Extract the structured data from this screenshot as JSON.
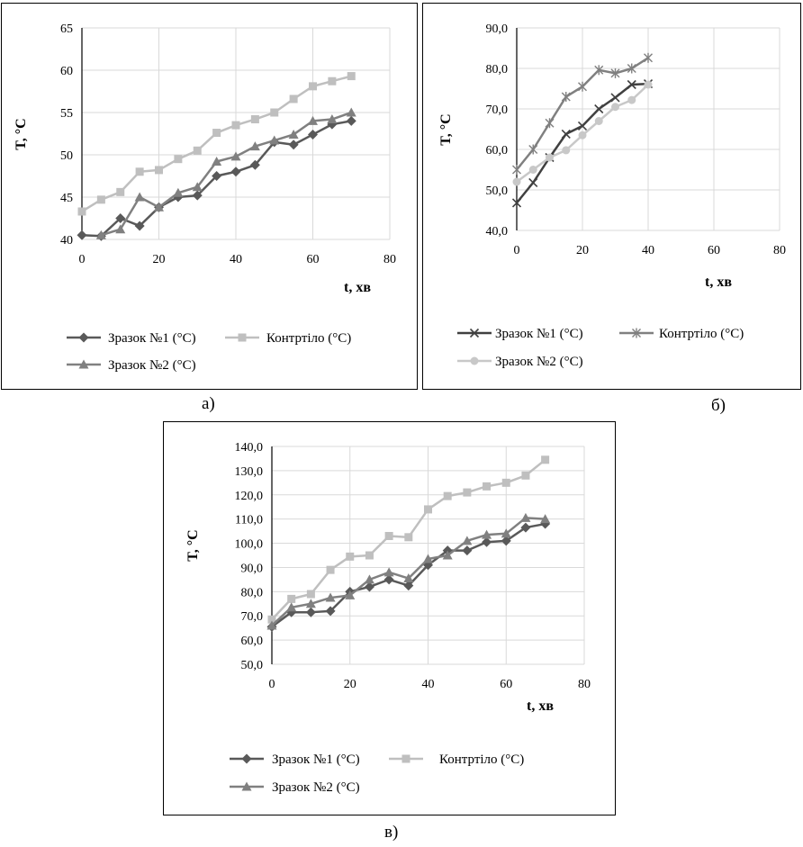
{
  "chart_data": [
    {
      "id": "a",
      "type": "line",
      "caption": "а)",
      "xlabel": "t, хв",
      "ylabel": "T, °C",
      "xlim": [
        0,
        80
      ],
      "ylim": [
        40,
        65
      ],
      "xticks": [
        "0",
        "20",
        "40",
        "60",
        "80"
      ],
      "yticks": [
        "40",
        "45",
        "50",
        "55",
        "60",
        "65"
      ],
      "grid": true,
      "legend": "bottom",
      "series": [
        {
          "name": "Зразок №1 (°C)",
          "color": "#595959",
          "marker": "diamond",
          "x": [
            0,
            5,
            10,
            15,
            20,
            25,
            30,
            35,
            40,
            45,
            50,
            55,
            60,
            65,
            70
          ],
          "y": [
            40.5,
            40.4,
            42.5,
            41.6,
            43.8,
            45.0,
            45.2,
            47.5,
            48.0,
            48.8,
            51.5,
            51.2,
            52.4,
            53.6,
            54.0
          ]
        },
        {
          "name": "Контртіло (°C)",
          "color": "#bfbfbf",
          "marker": "square",
          "x": [
            0,
            5,
            10,
            15,
            20,
            25,
            30,
            35,
            40,
            45,
            50,
            55,
            60,
            65,
            70
          ],
          "y": [
            43.3,
            44.7,
            45.6,
            48.0,
            48.2,
            49.5,
            50.5,
            52.6,
            53.5,
            54.2,
            55.0,
            56.6,
            58.1,
            58.7,
            59.3
          ]
        },
        {
          "name": "Зразок №2 (°C)",
          "color": "#808080",
          "marker": "triangle",
          "x": [
            5,
            10,
            15,
            20,
            25,
            30,
            35,
            40,
            45,
            50,
            55,
            60,
            65,
            70
          ],
          "y": [
            40.5,
            41.2,
            45.0,
            43.8,
            45.5,
            46.2,
            49.2,
            49.8,
            51.0,
            51.7,
            52.4,
            54.0,
            54.2,
            55.0
          ]
        }
      ]
    },
    {
      "id": "b",
      "type": "line",
      "caption": "б)",
      "xlabel": "t, хв",
      "ylabel": "T, °C",
      "xlim": [
        0,
        80
      ],
      "ylim": [
        40,
        90
      ],
      "xticks": [
        "0",
        "20",
        "40",
        "60",
        "80"
      ],
      "yticks": [
        "40,0",
        "50,0",
        "60,0",
        "70,0",
        "80,0",
        "90,0"
      ],
      "grid": true,
      "legend": "bottom",
      "series": [
        {
          "name": "Зразок №1 (°C)",
          "color": "#404040",
          "marker": "x",
          "x": [
            0,
            5,
            10,
            15,
            20,
            25,
            30,
            35,
            40
          ],
          "y": [
            46.8,
            51.8,
            58.0,
            63.8,
            65.8,
            70.0,
            72.8,
            76.0,
            76.2
          ]
        },
        {
          "name": "Контртіло (°C)",
          "color": "#808080",
          "marker": "star",
          "x": [
            0,
            5,
            10,
            15,
            20,
            25,
            30,
            35,
            40
          ],
          "y": [
            55.0,
            60.0,
            66.5,
            73.0,
            75.5,
            79.6,
            78.8,
            80.0,
            82.6
          ]
        },
        {
          "name": "Зразок №2 (°C)",
          "color": "#c8c8c8",
          "marker": "circle",
          "x": [
            0,
            5,
            10,
            15,
            20,
            25,
            30,
            35,
            40
          ],
          "y": [
            52.0,
            55.0,
            58.0,
            59.8,
            63.5,
            67.0,
            70.5,
            72.2,
            76.0
          ]
        }
      ]
    },
    {
      "id": "c",
      "type": "line",
      "caption": "в)",
      "xlabel": "t, хв",
      "ylabel": "T, °C",
      "xlim": [
        0,
        80
      ],
      "ylim": [
        50,
        140
      ],
      "xticks": [
        "0",
        "20",
        "40",
        "60",
        "80"
      ],
      "yticks": [
        "50,0",
        "60,0",
        "70,0",
        "80,0",
        "90,0",
        "100,0",
        "110,0",
        "120,0",
        "130,0",
        "140,0"
      ],
      "grid": true,
      "legend": "bottom",
      "series": [
        {
          "name": "Зразок №1 (°C)",
          "color": "#595959",
          "marker": "diamond",
          "x": [
            0,
            5,
            10,
            15,
            20,
            25,
            30,
            35,
            40,
            45,
            50,
            55,
            60,
            65,
            70
          ],
          "y": [
            65.5,
            71.5,
            71.5,
            72.0,
            80.0,
            82.0,
            85.0,
            82.5,
            91.0,
            97.0,
            97.0,
            100.5,
            101.0,
            106.5,
            108.0
          ]
        },
        {
          "name": "Контртіло (°C)",
          "color": "#bfbfbf",
          "marker": "square",
          "x": [
            0,
            5,
            10,
            15,
            20,
            25,
            30,
            35,
            40,
            45,
            50,
            55,
            60,
            65,
            70
          ],
          "y": [
            68.5,
            77.0,
            79.0,
            89.0,
            94.5,
            95.0,
            103.0,
            102.5,
            114.0,
            119.5,
            121.0,
            123.5,
            125.0,
            128.0,
            134.5
          ]
        },
        {
          "name": "Зразок №2 (°C)",
          "color": "#808080",
          "marker": "triangle",
          "x": [
            0,
            5,
            10,
            15,
            20,
            25,
            30,
            35,
            40,
            45,
            50,
            55,
            60,
            65,
            70
          ],
          "y": [
            66.0,
            73.5,
            75.0,
            77.5,
            78.5,
            85.0,
            88.0,
            85.5,
            93.5,
            95.0,
            101.0,
            103.5,
            104.0,
            110.5,
            110.0
          ]
        }
      ]
    }
  ]
}
